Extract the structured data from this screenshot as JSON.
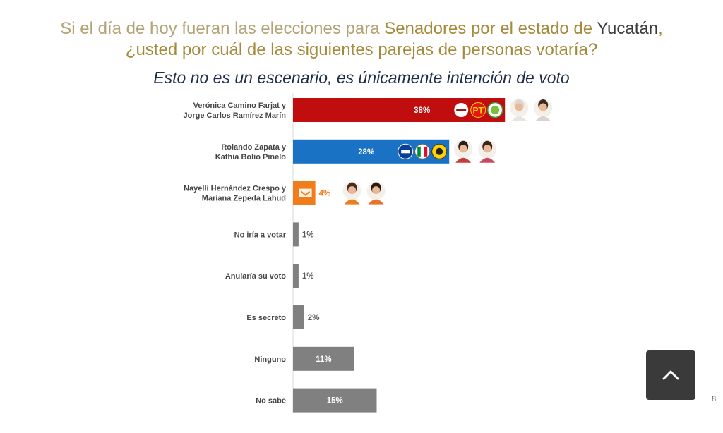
{
  "header": {
    "title_part1": "Si el día de hoy fueran las elecciones para ",
    "title_part2": "Senadores por el estado de ",
    "title_part3": "Yucatán",
    "title_part4": ",",
    "title_line2": "¿usted por cuál de las siguientes parejas de personas votaría?",
    "subtitle": "Esto no es un escenario, es únicamente intención de voto"
  },
  "chart_data": {
    "type": "bar",
    "orientation": "horizontal",
    "categories": [
      [
        "Verónica Camino Farjat y",
        "Jorge Carlos Ramírez Marín"
      ],
      [
        "Rolando Zapata y",
        "Kathia Bolio Pinelo"
      ],
      [
        "Nayelli Hernández Crespo y",
        "Mariana Zepeda Lahud"
      ],
      [
        "No iría a votar"
      ],
      [
        "Anularía su voto"
      ],
      [
        "Es secreto"
      ],
      [
        "Ninguno"
      ],
      [
        "No sabe"
      ]
    ],
    "values": [
      38,
      28,
      4,
      1,
      1,
      2,
      11,
      15
    ],
    "value_labels": [
      "38%",
      "28%",
      "4%",
      "1%",
      "1%",
      "2%",
      "11%",
      "15%"
    ],
    "colors": [
      "#c00d0d",
      "#1a72c4",
      "#f07c1c",
      "#808080",
      "#808080",
      "#808080",
      "#808080",
      "#808080"
    ],
    "label_colors": [
      "#ffffff",
      "#ffffff",
      "#f07c1c",
      "#595959",
      "#595959",
      "#595959",
      "#ffffff",
      "#ffffff"
    ],
    "label_inside": [
      true,
      true,
      false,
      false,
      false,
      false,
      true,
      true
    ],
    "logos": [
      [
        "morena-logo",
        "pt-logo",
        "pvem-logo"
      ],
      [
        "pan-logo",
        "pri-logo",
        "prd-logo"
      ],
      [
        "mc-logo"
      ],
      [],
      [],
      [],
      [],
      []
    ],
    "pt_logo_text": "PT",
    "xlim": [
      0,
      40
    ],
    "grid": false,
    "legend": "none"
  },
  "page": {
    "number": "8"
  },
  "icons": {
    "scroll_top": "chevron-up-icon"
  }
}
